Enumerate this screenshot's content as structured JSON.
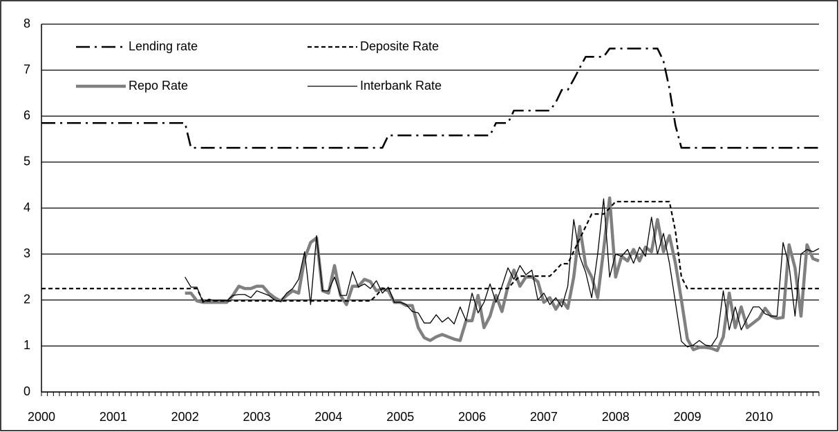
{
  "chart_data": {
    "type": "line",
    "categories": [
      "2000",
      null,
      null,
      null,
      null,
      null,
      null,
      null,
      null,
      null,
      null,
      null,
      "2001",
      null,
      null,
      null,
      null,
      null,
      null,
      null,
      null,
      null,
      null,
      null,
      "2002",
      null,
      null,
      null,
      null,
      null,
      null,
      null,
      null,
      null,
      null,
      null,
      "2003",
      null,
      null,
      null,
      null,
      null,
      null,
      null,
      null,
      null,
      null,
      null,
      "2004",
      null,
      null,
      null,
      null,
      null,
      null,
      null,
      null,
      null,
      null,
      null,
      "2005",
      null,
      null,
      null,
      null,
      null,
      null,
      null,
      null,
      null,
      null,
      null,
      "2006",
      null,
      null,
      null,
      null,
      null,
      null,
      null,
      null,
      null,
      null,
      null,
      "2007",
      null,
      null,
      null,
      null,
      null,
      null,
      null,
      null,
      null,
      null,
      null,
      "2008",
      null,
      null,
      null,
      null,
      null,
      null,
      null,
      null,
      null,
      null,
      null,
      "2009",
      null,
      null,
      null,
      null,
      null,
      null,
      null,
      null,
      null,
      null,
      null,
      "2010",
      null,
      null,
      null,
      null,
      null,
      null,
      null,
      null,
      null,
      null
    ],
    "ylim": [
      0,
      8
    ],
    "yticks": [
      0,
      1,
      2,
      3,
      4,
      5,
      6,
      7,
      8
    ],
    "grid": true,
    "series": [
      {
        "name": "Lending rate",
        "color": "#000000",
        "style": "dash-dot",
        "values": [
          5.85,
          5.85,
          5.85,
          5.85,
          5.85,
          5.85,
          5.85,
          5.85,
          5.85,
          5.85,
          5.85,
          5.85,
          5.85,
          5.85,
          5.85,
          5.85,
          5.85,
          5.85,
          5.85,
          5.85,
          5.85,
          5.85,
          5.85,
          5.85,
          5.85,
          5.31,
          5.31,
          5.31,
          5.31,
          5.31,
          5.31,
          5.31,
          5.31,
          5.31,
          5.31,
          5.31,
          5.31,
          5.31,
          5.31,
          5.31,
          5.31,
          5.31,
          5.31,
          5.31,
          5.31,
          5.31,
          5.31,
          5.31,
          5.31,
          5.31,
          5.31,
          5.31,
          5.31,
          5.31,
          5.31,
          5.31,
          5.31,
          5.31,
          5.58,
          5.58,
          5.58,
          5.58,
          5.58,
          5.58,
          5.58,
          5.58,
          5.58,
          5.58,
          5.58,
          5.58,
          5.58,
          5.58,
          5.58,
          5.58,
          5.58,
          5.58,
          5.85,
          5.85,
          5.85,
          6.12,
          6.12,
          6.12,
          6.12,
          6.12,
          6.12,
          6.12,
          6.3,
          6.57,
          6.57,
          6.8,
          7.05,
          7.29,
          7.29,
          7.29,
          7.29,
          7.47,
          7.47,
          7.47,
          7.47,
          7.47,
          7.47,
          7.47,
          7.47,
          7.47,
          7.2,
          6.6,
          5.8,
          5.31,
          5.31,
          5.31,
          5.31,
          5.31,
          5.31,
          5.31,
          5.31,
          5.31,
          5.31,
          5.31,
          5.31,
          5.31,
          5.31,
          5.31,
          5.31,
          5.31,
          5.31,
          5.31,
          5.31,
          5.31,
          5.31,
          5.31,
          5.31
        ]
      },
      {
        "name": "Deposite Rate",
        "color": "#000000",
        "style": "dashed",
        "values": [
          2.25,
          2.25,
          2.25,
          2.25,
          2.25,
          2.25,
          2.25,
          2.25,
          2.25,
          2.25,
          2.25,
          2.25,
          2.25,
          2.25,
          2.25,
          2.25,
          2.25,
          2.25,
          2.25,
          2.25,
          2.25,
          2.25,
          2.25,
          2.25,
          2.25,
          2.25,
          2.25,
          1.98,
          1.98,
          1.98,
          1.98,
          1.98,
          1.98,
          1.98,
          1.98,
          1.98,
          1.98,
          1.98,
          1.98,
          1.98,
          1.98,
          1.98,
          1.98,
          1.98,
          1.98,
          1.98,
          1.98,
          1.98,
          1.98,
          1.98,
          1.98,
          1.98,
          1.98,
          1.98,
          1.98,
          1.98,
          2.1,
          2.25,
          2.25,
          2.25,
          2.25,
          2.25,
          2.25,
          2.25,
          2.25,
          2.25,
          2.25,
          2.25,
          2.25,
          2.25,
          2.25,
          2.25,
          2.25,
          2.25,
          2.25,
          2.25,
          2.25,
          2.25,
          2.25,
          2.4,
          2.52,
          2.52,
          2.52,
          2.52,
          2.52,
          2.52,
          2.65,
          2.79,
          2.79,
          3.06,
          3.33,
          3.6,
          3.87,
          3.87,
          3.87,
          4.0,
          4.14,
          4.14,
          4.14,
          4.14,
          4.14,
          4.14,
          4.14,
          4.14,
          4.14,
          4.14,
          3.5,
          2.5,
          2.25,
          2.25,
          2.25,
          2.25,
          2.25,
          2.25,
          2.25,
          2.25,
          2.25,
          2.25,
          2.25,
          2.25,
          2.25,
          2.25,
          2.25,
          2.25,
          2.25,
          2.25,
          2.25,
          2.25,
          2.25,
          2.25,
          2.25
        ]
      },
      {
        "name": "Repo Rate",
        "color": "#808080",
        "style": "thick",
        "values": [
          null,
          null,
          null,
          null,
          null,
          null,
          null,
          null,
          null,
          null,
          null,
          null,
          null,
          null,
          null,
          null,
          null,
          null,
          null,
          null,
          null,
          null,
          null,
          null,
          2.15,
          2.15,
          1.98,
          1.95,
          1.95,
          1.95,
          1.95,
          1.95,
          2.1,
          2.3,
          2.25,
          2.25,
          2.3,
          2.3,
          2.15,
          2.05,
          1.98,
          2.1,
          2.2,
          2.15,
          2.9,
          3.25,
          3.35,
          2.2,
          2.15,
          2.75,
          2.1,
          1.9,
          2.3,
          2.3,
          2.45,
          2.4,
          2.2,
          2.25,
          2.2,
          1.95,
          1.95,
          1.88,
          1.88,
          1.4,
          1.18,
          1.12,
          1.2,
          1.25,
          1.2,
          1.15,
          1.12,
          1.55,
          1.55,
          2.1,
          1.4,
          1.65,
          2.1,
          1.75,
          2.3,
          2.65,
          2.3,
          2.5,
          2.5,
          2.4,
          1.95,
          2.05,
          1.8,
          2.0,
          1.82,
          2.5,
          3.6,
          2.75,
          2.5,
          2.05,
          3.1,
          4.22,
          2.5,
          2.95,
          2.85,
          3.1,
          2.85,
          3.15,
          3.05,
          3.75,
          3.05,
          3.4,
          2.8,
          2.0,
          1.15,
          0.92,
          0.97,
          0.97,
          0.95,
          0.9,
          1.2,
          2.15,
          1.4,
          1.85,
          1.4,
          1.5,
          1.6,
          1.82,
          1.65,
          1.6,
          1.62,
          3.2,
          2.7,
          1.65,
          3.2,
          2.9,
          2.85
        ]
      },
      {
        "name": "Interbank Rate",
        "color": "#000000",
        "style": "thin",
        "values": [
          null,
          null,
          null,
          null,
          null,
          null,
          null,
          null,
          null,
          null,
          null,
          null,
          null,
          null,
          null,
          null,
          null,
          null,
          null,
          null,
          null,
          null,
          null,
          null,
          2.5,
          2.28,
          2.28,
          1.95,
          2.02,
          1.98,
          2.0,
          1.98,
          2.1,
          2.12,
          2.12,
          2.05,
          2.2,
          2.15,
          2.1,
          2.0,
          1.97,
          2.15,
          2.25,
          2.45,
          3.05,
          1.9,
          3.4,
          2.2,
          2.2,
          2.5,
          2.1,
          2.1,
          2.62,
          2.28,
          2.35,
          2.25,
          2.42,
          2.15,
          2.28,
          1.95,
          1.95,
          1.9,
          1.75,
          1.72,
          1.5,
          1.5,
          1.68,
          1.52,
          1.62,
          1.48,
          1.85,
          1.55,
          2.15,
          1.72,
          1.95,
          2.35,
          1.95,
          2.3,
          2.7,
          2.45,
          2.75,
          2.55,
          2.65,
          2.0,
          2.15,
          1.9,
          2.05,
          1.85,
          2.3,
          3.75,
          2.95,
          2.6,
          2.05,
          3.0,
          4.2,
          2.5,
          3.0,
          2.95,
          3.1,
          2.8,
          3.15,
          2.95,
          3.8,
          3.0,
          3.45,
          2.8,
          1.95,
          1.1,
          0.98,
          1.02,
          1.12,
          1.02,
          1.0,
          1.2,
          2.2,
          1.35,
          1.85,
          1.35,
          1.6,
          1.85,
          1.85,
          1.7,
          1.65,
          1.65,
          3.25,
          2.75,
          1.65,
          3.0,
          3.1,
          3.05,
          3.12
        ]
      }
    ]
  }
}
